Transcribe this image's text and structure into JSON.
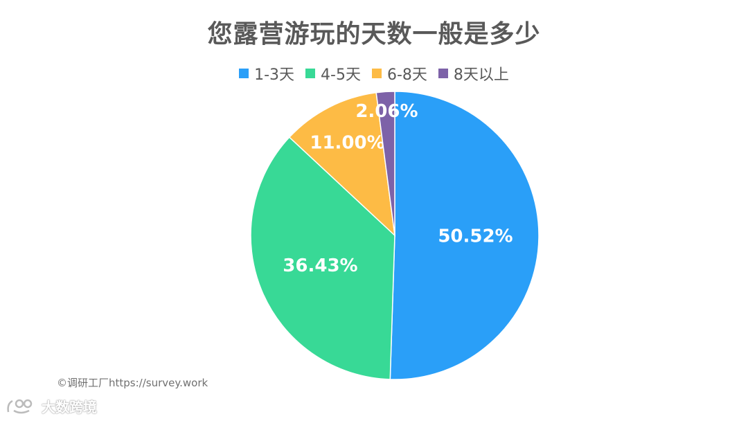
{
  "chart_data": {
    "type": "pie",
    "title": "您露营游玩的天数一般是多少",
    "categories": [
      "1-3天",
      "4-5天",
      "6-8天",
      "8天以上"
    ],
    "values": [
      50.52,
      36.43,
      11.0,
      2.06
    ],
    "labels": [
      "50.52%",
      "36.43%",
      "11.00%",
      "2.06%"
    ],
    "colors": [
      "#2a9ff8",
      "#38d996",
      "#fdbb45",
      "#7d62a8"
    ],
    "legend_position": "top",
    "start_angle": "12 o'clock, clockwise"
  },
  "footer": {
    "source": "©调研工厂https://survey.work",
    "watermark": "大数跨境"
  }
}
